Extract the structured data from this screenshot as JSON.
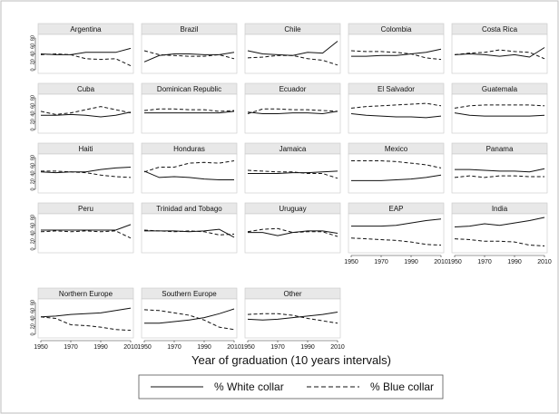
{
  "chart_data": {
    "type": "line",
    "xlabel": "Year of graduation (10 years intervals)",
    "ylabel": "",
    "xlim": [
      1950,
      2010
    ],
    "ylim": [
      0,
      80
    ],
    "x_ticks": [
      "1950",
      "1970",
      "1990",
      "2010"
    ],
    "y_ticks": [
      "0",
      "20",
      "40",
      "60",
      "80"
    ],
    "x": [
      1950,
      1960,
      1970,
      1980,
      1990,
      2000,
      2010
    ],
    "legend": {
      "position": "bottom",
      "entries": [
        {
          "label": "% White collar",
          "style": "solid"
        },
        {
          "label": "% Blue collar",
          "style": "dashed"
        }
      ]
    },
    "panels": [
      {
        "name": "Argentina",
        "white": [
          40,
          38,
          38,
          44,
          44,
          44,
          54
        ],
        "blue": [
          38,
          40,
          38,
          28,
          26,
          28,
          10
        ]
      },
      {
        "name": "Brazil",
        "white": [
          20,
          36,
          40,
          40,
          38,
          38,
          44
        ],
        "blue": [
          48,
          38,
          36,
          34,
          34,
          38,
          28
        ]
      },
      {
        "name": "Chile",
        "white": [
          48,
          40,
          38,
          36,
          44,
          42,
          72
        ],
        "blue": [
          30,
          32,
          36,
          36,
          28,
          24,
          12
        ]
      },
      {
        "name": "Colombia",
        "white": [
          34,
          34,
          36,
          36,
          40,
          44,
          52
        ],
        "blue": [
          48,
          46,
          46,
          44,
          40,
          30,
          26
        ]
      },
      {
        "name": "Costa Rica",
        "white": [
          38,
          40,
          38,
          34,
          38,
          32,
          56
        ],
        "blue": [
          38,
          42,
          44,
          50,
          46,
          44,
          28
        ]
      },
      {
        "name": "Cuba",
        "white": [
          36,
          36,
          38,
          36,
          32,
          36,
          44
        ],
        "blue": [
          46,
          38,
          42,
          50,
          58,
          50,
          42
        ]
      },
      {
        "name": "Dominican Republic",
        "white": [
          42,
          42,
          42,
          42,
          42,
          42,
          46
        ],
        "blue": [
          48,
          52,
          52,
          50,
          50,
          46,
          48
        ]
      },
      {
        "name": "Ecuador",
        "white": [
          44,
          40,
          40,
          42,
          42,
          40,
          46
        ],
        "blue": [
          40,
          52,
          52,
          50,
          50,
          48,
          46
        ]
      },
      {
        "name": "El Salvador",
        "white": [
          40,
          36,
          34,
          32,
          32,
          30,
          34
        ],
        "blue": [
          54,
          58,
          60,
          62,
          64,
          66,
          60
        ]
      },
      {
        "name": "Guatemala",
        "white": [
          42,
          36,
          34,
          34,
          34,
          34,
          36
        ],
        "blue": [
          54,
          60,
          62,
          62,
          62,
          62,
          60
        ]
      },
      {
        "name": "Haiti",
        "white": [
          44,
          42,
          44,
          44,
          50,
          54,
          56
        ],
        "blue": [
          46,
          46,
          44,
          42,
          36,
          32,
          30
        ]
      },
      {
        "name": "Honduras",
        "white": [
          46,
          30,
          32,
          30,
          26,
          24,
          24
        ],
        "blue": [
          44,
          56,
          56,
          66,
          68,
          66,
          72
        ]
      },
      {
        "name": "Jamaica",
        "white": [
          40,
          40,
          40,
          42,
          42,
          44,
          46
        ],
        "blue": [
          48,
          46,
          44,
          44,
          40,
          40,
          28
        ]
      },
      {
        "name": "Mexico",
        "white": [
          22,
          22,
          22,
          24,
          26,
          30,
          36
        ],
        "blue": [
          72,
          72,
          72,
          70,
          66,
          62,
          54
        ]
      },
      {
        "name": "Panama",
        "white": [
          50,
          50,
          48,
          46,
          46,
          44,
          52
        ],
        "blue": [
          30,
          34,
          30,
          34,
          34,
          32,
          32
        ]
      },
      {
        "name": "Peru",
        "white": [
          48,
          48,
          48,
          48,
          48,
          48,
          62
        ],
        "blue": [
          44,
          46,
          44,
          46,
          44,
          46,
          28
        ]
      },
      {
        "name": "Trinidad and Tobago",
        "white": [
          46,
          46,
          46,
          44,
          46,
          50,
          30
        ],
        "blue": [
          48,
          46,
          44,
          46,
          44,
          36,
          38
        ]
      },
      {
        "name": "Uruguay",
        "white": [
          42,
          42,
          34,
          42,
          46,
          46,
          40
        ],
        "blue": [
          44,
          50,
          52,
          42,
          44,
          44,
          32
        ]
      },
      {
        "name": "EAP",
        "white": [
          58,
          58,
          58,
          60,
          66,
          72,
          76
        ],
        "blue": [
          28,
          26,
          24,
          22,
          18,
          12,
          10
        ]
      },
      {
        "name": "India",
        "white": [
          56,
          58,
          64,
          60,
          66,
          72,
          80
        ],
        "blue": [
          26,
          24,
          20,
          20,
          18,
          10,
          8
        ]
      },
      {
        "name": "Northern Europe",
        "white": [
          44,
          46,
          50,
          52,
          54,
          60,
          66
        ],
        "blue": [
          44,
          40,
          24,
          22,
          18,
          12,
          10
        ]
      },
      {
        "name": "Southern Europe",
        "white": [
          28,
          28,
          32,
          36,
          42,
          52,
          64
        ],
        "blue": [
          62,
          60,
          54,
          48,
          36,
          18,
          12
        ]
      },
      {
        "name": "Other",
        "white": [
          38,
          36,
          38,
          42,
          46,
          50,
          56
        ],
        "blue": [
          50,
          52,
          52,
          48,
          40,
          34,
          28
        ]
      }
    ]
  }
}
